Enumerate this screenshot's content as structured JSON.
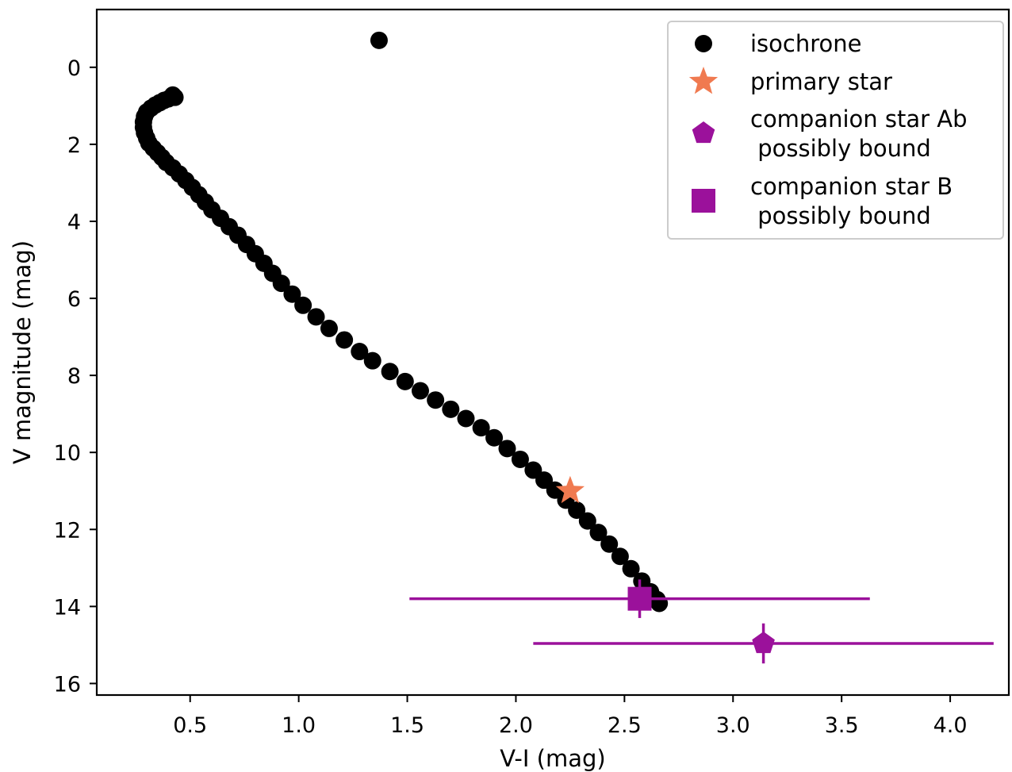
{
  "chart_data": {
    "type": "scatter",
    "title": "",
    "xlabel": "V-I (mag)",
    "ylabel": "V magnitude (mag)",
    "xlim": [
      0.07,
      4.27
    ],
    "ylim": [
      16.3,
      -1.5
    ],
    "y_inverted": true,
    "grid": false,
    "legend_position": "top-right",
    "xticks": [
      0.5,
      1.0,
      1.5,
      2.0,
      2.5,
      3.0,
      3.5,
      4.0
    ],
    "xtick_labels": [
      "0.5",
      "1.0",
      "1.5",
      "2.0",
      "2.5",
      "3.0",
      "3.5",
      "4.0"
    ],
    "yticks": [
      0,
      2,
      4,
      6,
      8,
      10,
      12,
      14,
      16
    ],
    "ytick_labels": [
      "0",
      "2",
      "4",
      "6",
      "8",
      "10",
      "12",
      "14",
      "16"
    ],
    "series": [
      {
        "name": "isochrone",
        "marker": "circle",
        "color": "#000000",
        "points": [
          [
            1.37,
            -0.7
          ],
          [
            0.43,
            0.78
          ],
          [
            0.42,
            0.72
          ],
          [
            0.4,
            0.82
          ],
          [
            0.38,
            0.86
          ],
          [
            0.36,
            0.92
          ],
          [
            0.34,
            0.98
          ],
          [
            0.32,
            1.06
          ],
          [
            0.3,
            1.16
          ],
          [
            0.29,
            1.28
          ],
          [
            0.285,
            1.42
          ],
          [
            0.285,
            1.56
          ],
          [
            0.29,
            1.7
          ],
          [
            0.3,
            1.84
          ],
          [
            0.31,
            1.97
          ],
          [
            0.33,
            2.1
          ],
          [
            0.35,
            2.22
          ],
          [
            0.37,
            2.34
          ],
          [
            0.39,
            2.47
          ],
          [
            0.42,
            2.61
          ],
          [
            0.45,
            2.77
          ],
          [
            0.48,
            2.94
          ],
          [
            0.51,
            3.12
          ],
          [
            0.54,
            3.31
          ],
          [
            0.57,
            3.5
          ],
          [
            0.6,
            3.7
          ],
          [
            0.64,
            3.92
          ],
          [
            0.68,
            4.14
          ],
          [
            0.72,
            4.36
          ],
          [
            0.76,
            4.6
          ],
          [
            0.8,
            4.84
          ],
          [
            0.84,
            5.09
          ],
          [
            0.88,
            5.35
          ],
          [
            0.92,
            5.61
          ],
          [
            0.97,
            5.89
          ],
          [
            1.02,
            6.18
          ],
          [
            1.08,
            6.48
          ],
          [
            1.14,
            6.78
          ],
          [
            1.21,
            7.08
          ],
          [
            1.28,
            7.38
          ],
          [
            1.34,
            7.62
          ],
          [
            1.42,
            7.9
          ],
          [
            1.49,
            8.16
          ],
          [
            1.56,
            8.4
          ],
          [
            1.63,
            8.64
          ],
          [
            1.7,
            8.88
          ],
          [
            1.77,
            9.12
          ],
          [
            1.84,
            9.36
          ],
          [
            1.9,
            9.62
          ],
          [
            1.96,
            9.9
          ],
          [
            2.02,
            10.18
          ],
          [
            2.08,
            10.46
          ],
          [
            2.13,
            10.72
          ],
          [
            2.18,
            10.98
          ],
          [
            2.23,
            11.24
          ],
          [
            2.28,
            11.5
          ],
          [
            2.33,
            11.78
          ],
          [
            2.38,
            12.08
          ],
          [
            2.43,
            12.38
          ],
          [
            2.48,
            12.7
          ],
          [
            2.53,
            13.02
          ],
          [
            2.58,
            13.34
          ],
          [
            2.62,
            13.62
          ],
          [
            2.65,
            13.82
          ],
          [
            2.66,
            13.92
          ]
        ]
      },
      {
        "name": "primary star",
        "marker": "star",
        "color": "#f07a50",
        "points": [
          [
            2.25,
            11.0
          ]
        ]
      },
      {
        "name": "companion star Ab\n possibly bound",
        "marker": "pentagon",
        "color": "#9b119b",
        "points": [
          [
            3.14,
            14.96
          ]
        ],
        "xerr": [
          [
            2.08,
            4.2
          ]
        ],
        "yerr": [
          [
            14.44,
            15.48
          ]
        ]
      },
      {
        "name": "companion star B\n possibly bound",
        "marker": "square",
        "color": "#9b119b",
        "points": [
          [
            2.57,
            13.8
          ]
        ],
        "xerr": [
          [
            1.51,
            3.63
          ]
        ],
        "yerr": [
          [
            13.3,
            14.3
          ]
        ]
      }
    ]
  }
}
